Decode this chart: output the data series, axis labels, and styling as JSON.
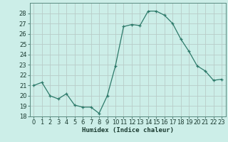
{
  "x": [
    0,
    1,
    2,
    3,
    4,
    5,
    6,
    7,
    8,
    9,
    10,
    11,
    12,
    13,
    14,
    15,
    16,
    17,
    18,
    19,
    20,
    21,
    22,
    23
  ],
  "y": [
    21.0,
    21.3,
    20.0,
    19.7,
    20.2,
    19.1,
    18.9,
    18.9,
    18.3,
    20.0,
    22.9,
    26.7,
    26.9,
    26.8,
    28.2,
    28.2,
    27.8,
    27.0,
    25.5,
    24.3,
    22.9,
    22.4,
    21.5,
    21.6
  ],
  "xlabel": "Humidex (Indice chaleur)",
  "ylim": [
    18,
    29
  ],
  "xlim": [
    -0.5,
    23.5
  ],
  "yticks": [
    18,
    19,
    20,
    21,
    22,
    23,
    24,
    25,
    26,
    27,
    28
  ],
  "xticks": [
    0,
    1,
    2,
    3,
    4,
    5,
    6,
    7,
    8,
    9,
    10,
    11,
    12,
    13,
    14,
    15,
    16,
    17,
    18,
    19,
    20,
    21,
    22,
    23
  ],
  "line_color": "#2d7a6a",
  "marker_color": "#2d7a6a",
  "bg_color": "#cceee8",
  "grid_color": "#b8ccc8",
  "title_fontsize": 7,
  "axis_fontsize": 6.5,
  "tick_fontsize": 6.0
}
